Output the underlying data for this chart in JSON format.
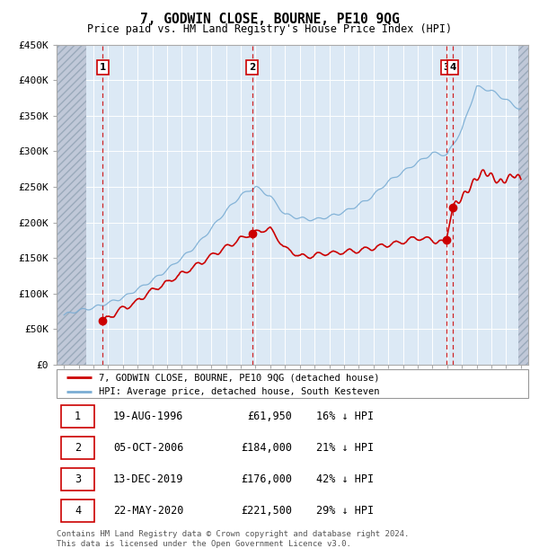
{
  "title": "7, GODWIN CLOSE, BOURNE, PE10 9QG",
  "subtitle": "Price paid vs. HM Land Registry's House Price Index (HPI)",
  "ylim": [
    0,
    450000
  ],
  "xlim_start": 1993.5,
  "xlim_end": 2025.5,
  "yticks": [
    0,
    50000,
    100000,
    150000,
    200000,
    250000,
    300000,
    350000,
    400000,
    450000
  ],
  "ytick_labels": [
    "£0",
    "£50K",
    "£100K",
    "£150K",
    "£200K",
    "£250K",
    "£300K",
    "£350K",
    "£400K",
    "£450K"
  ],
  "transactions": [
    {
      "num": 1,
      "date": "19-AUG-1996",
      "price": 61950,
      "pct": "16%",
      "x_year": 1996.63
    },
    {
      "num": 2,
      "date": "05-OCT-2006",
      "price": 184000,
      "pct": "21%",
      "x_year": 2006.76
    },
    {
      "num": 3,
      "date": "13-DEC-2019",
      "price": 176000,
      "pct": "42%",
      "x_year": 2019.95
    },
    {
      "num": 4,
      "date": "22-MAY-2020",
      "price": 221500,
      "pct": "29%",
      "x_year": 2020.39
    }
  ],
  "red_line_color": "#cc0000",
  "blue_line_color": "#7aadd4",
  "background_color": "#dce9f5",
  "hatch_left_end": 1995.5,
  "hatch_right_start": 2024.83,
  "legend_line1": "7, GODWIN CLOSE, BOURNE, PE10 9QG (detached house)",
  "legend_line2": "HPI: Average price, detached house, South Kesteven",
  "footnote": "Contains HM Land Registry data © Crown copyright and database right 2024.\nThis data is licensed under the Open Government Licence v3.0.",
  "table_rows": [
    [
      "1",
      "19-AUG-1996",
      "£61,950",
      "16% ↓ HPI"
    ],
    [
      "2",
      "05-OCT-2006",
      "£184,000",
      "21% ↓ HPI"
    ],
    [
      "3",
      "13-DEC-2019",
      "£176,000",
      "42% ↓ HPI"
    ],
    [
      "4",
      "22-MAY-2020",
      "£221,500",
      "29% ↓ HPI"
    ]
  ]
}
